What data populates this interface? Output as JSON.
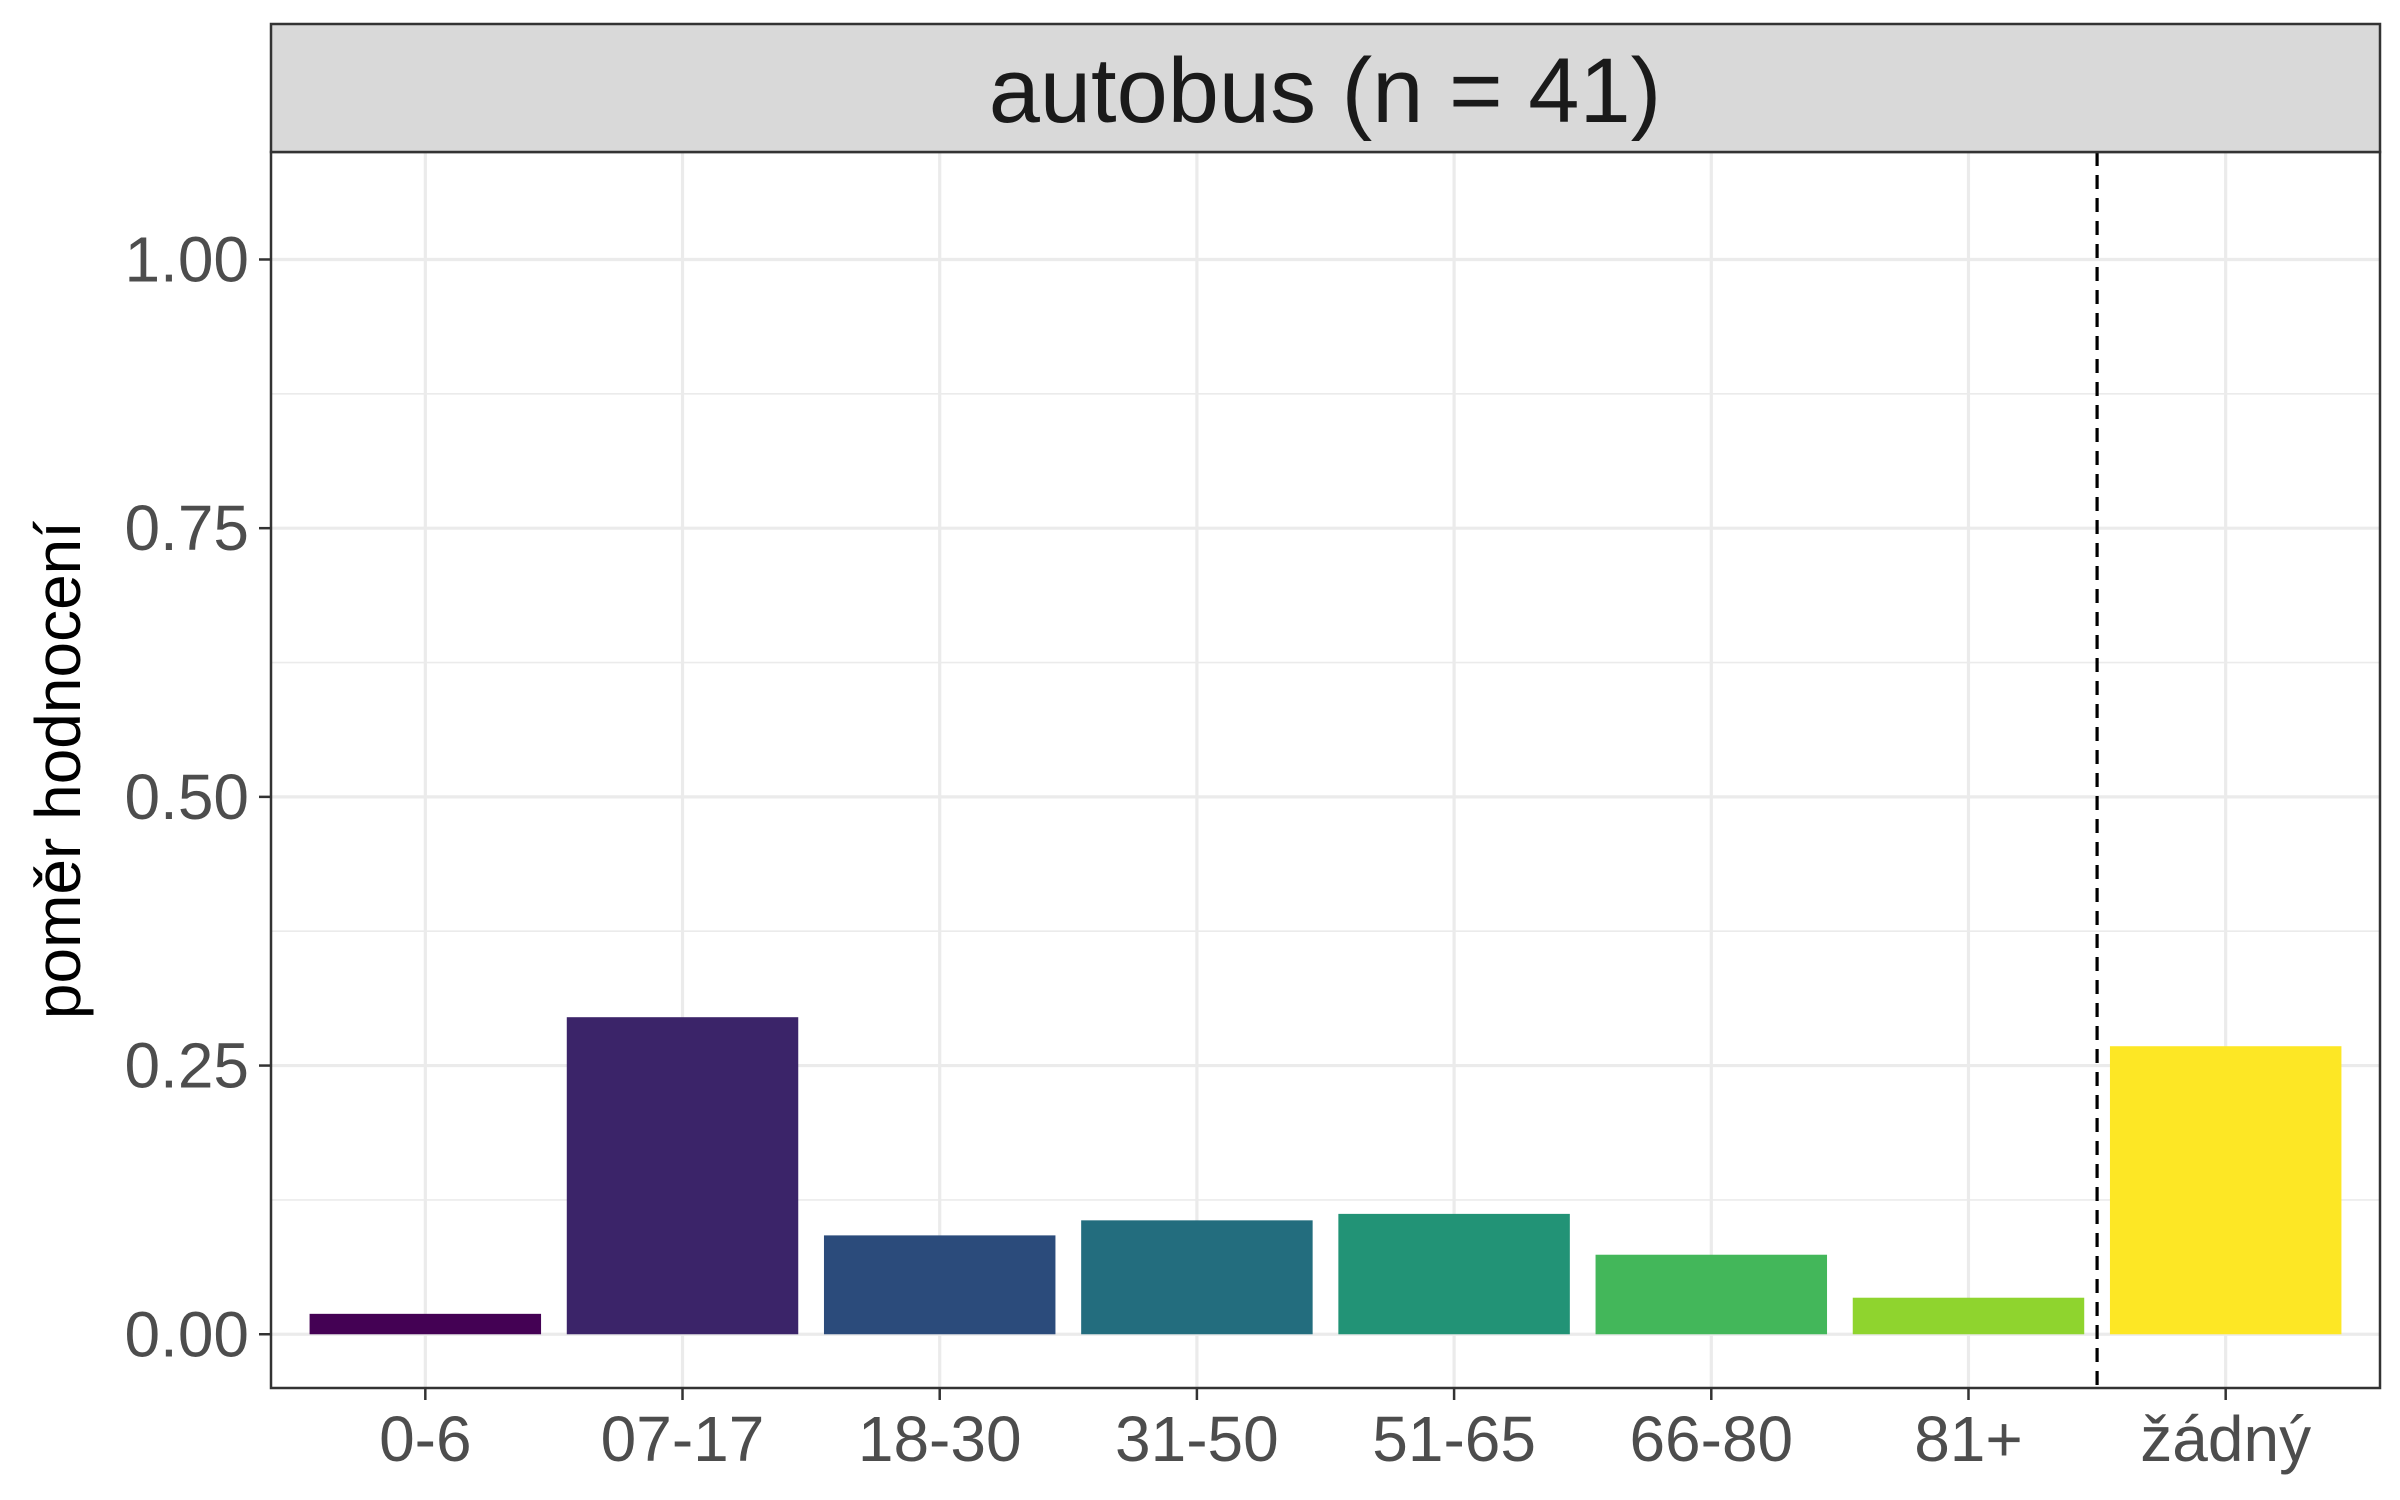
{
  "chart_data": {
    "type": "bar",
    "facet_title": "autobus (n = 41)",
    "xlabel": "",
    "ylabel": "poměr hodnocení",
    "categories": [
      "0-6",
      "07-17",
      "18-30",
      "31-50",
      "51-65",
      "66-80",
      "81+",
      "žádný"
    ],
    "values": [
      0.019,
      0.295,
      0.092,
      0.106,
      0.112,
      0.074,
      0.034,
      0.268
    ],
    "colors": [
      "#440154",
      "#3B2469",
      "#2B4B7B",
      "#236D7E",
      "#229376",
      "#43B75A",
      "#8FD42E",
      "#FDE725"
    ],
    "ylim": [
      -0.05,
      1.1
    ],
    "y_ticks": [
      0,
      0.25,
      0.5,
      0.75,
      1.0
    ],
    "y_tick_labels": [
      "0.00",
      "0.25",
      "0.50",
      "0.75",
      "1.00"
    ],
    "grid": true,
    "reference_line": {
      "style": "dashed",
      "between": [
        "81+",
        "žádný"
      ]
    }
  }
}
